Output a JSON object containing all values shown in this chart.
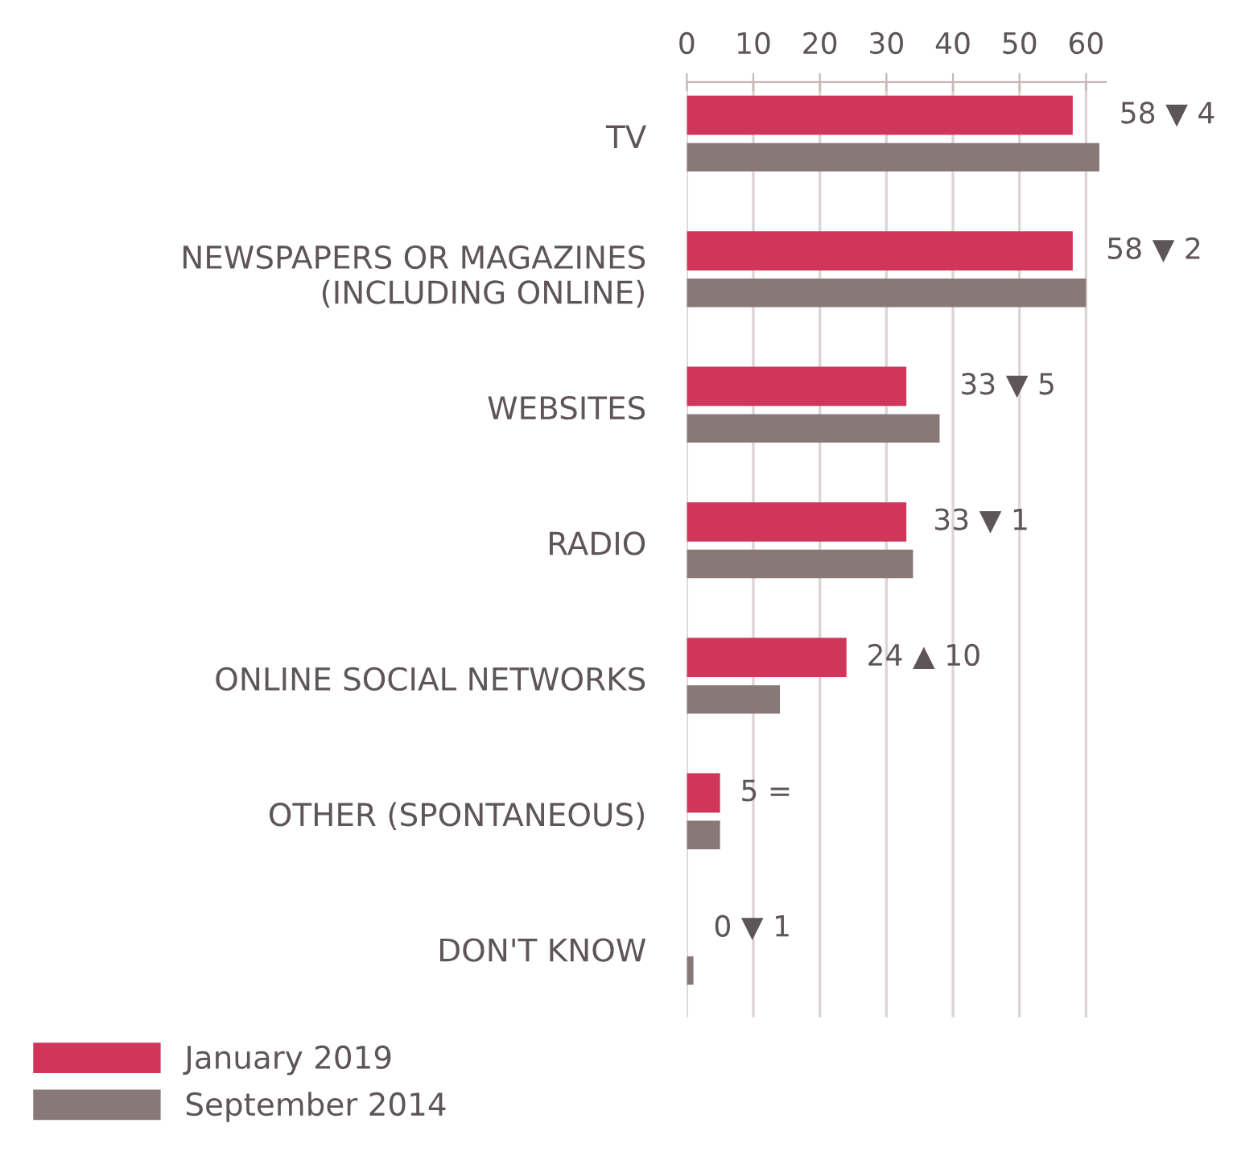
{
  "chart_data": {
    "type": "bar",
    "orientation": "horizontal",
    "categories": [
      "TV",
      "NEWSPAPERS OR MAGAZINES\n(INCLUDING ONLINE)",
      "WEBSITES",
      "RADIO",
      "ONLINE SOCIAL NETWORKS",
      "OTHER (SPONTANEOUS)",
      "DON'T KNOW"
    ],
    "series": [
      {
        "name": "January 2019",
        "color": "#d0365a",
        "values": [
          58,
          58,
          33,
          33,
          24,
          5,
          0
        ],
        "value_labels": [
          "58 ▼ 4",
          "58 ▼ 2",
          "33 ▼ 5",
          "33 ▼ 1",
          "24 ▲ 10",
          "5 =",
          "0 ▼ 1"
        ]
      },
      {
        "name": "September 2014",
        "color": "#887878",
        "values": [
          62,
          60,
          38,
          34,
          14,
          5,
          1
        ]
      }
    ],
    "xlim": [
      0,
      63
    ],
    "xticks": [
      0,
      10,
      20,
      30,
      40,
      50,
      60
    ],
    "grid": "x",
    "legend": "bottom left"
  }
}
